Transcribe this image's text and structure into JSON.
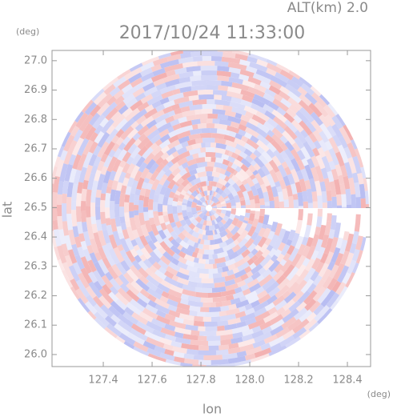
{
  "chart_data": {
    "type": "ppi",
    "title": "2017/10/24 11:33:00",
    "altitude": "ALT(km) 2.0",
    "y_unit": "(deg)",
    "x_unit": "(deg)",
    "xlabel": "lon",
    "ylabel": "lat",
    "xlim": [
      127.19,
      128.495
    ],
    "ylim": [
      25.959,
      27.035
    ],
    "xticks": [
      127.4,
      127.6,
      127.8,
      {
        "value": 128,
        "label": "128.0"
      },
      128.2,
      128.4
    ],
    "yticks": [
      {
        "value": 26,
        "label": "26.0"
      },
      26.1,
      26.2,
      26.3,
      26.4,
      26.5,
      26.6,
      26.7,
      26.8,
      26.9,
      {
        "value": 27,
        "label": "27.0"
      }
    ],
    "colors": [
      "#f3b0b0",
      "#b8bdf2"
    ]
  }
}
